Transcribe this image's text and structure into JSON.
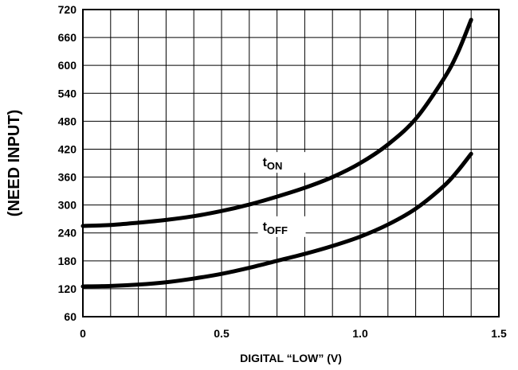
{
  "chart_data": {
    "type": "line",
    "xlabel": "DIGITAL “LOW” (V)",
    "ylabel": "(NEED INPUT)",
    "xlim": [
      0,
      1.5
    ],
    "ylim": [
      60,
      720
    ],
    "x_ticks": [
      "0",
      "0.5",
      "1.0",
      "1.5"
    ],
    "y_ticks": [
      "60",
      "120",
      "180",
      "240",
      "300",
      "360",
      "420",
      "480",
      "540",
      "600",
      "660",
      "720"
    ],
    "grid": true,
    "series": [
      {
        "name": "tON",
        "label_main": "t",
        "label_sub": "ON",
        "x": [
          0,
          0.1,
          0.2,
          0.3,
          0.4,
          0.5,
          0.6,
          0.7,
          0.8,
          0.9,
          1.0,
          1.1,
          1.2,
          1.3,
          1.35,
          1.4
        ],
        "y": [
          255,
          257,
          262,
          268,
          276,
          287,
          301,
          318,
          337,
          360,
          390,
          430,
          485,
          570,
          625,
          698
        ]
      },
      {
        "name": "tOFF",
        "label_main": "t",
        "label_sub": "OFF",
        "x": [
          0,
          0.1,
          0.2,
          0.3,
          0.4,
          0.5,
          0.6,
          0.7,
          0.8,
          0.9,
          1.0,
          1.1,
          1.2,
          1.3,
          1.35,
          1.4
        ],
        "y": [
          125,
          126,
          129,
          134,
          142,
          152,
          165,
          180,
          195,
          212,
          232,
          258,
          292,
          340,
          372,
          410
        ]
      }
    ]
  }
}
